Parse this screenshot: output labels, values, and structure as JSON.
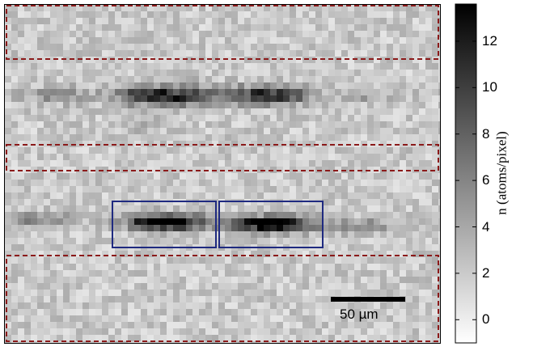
{
  "image": {
    "description_labels": {
      "scale_bar": "50 µm",
      "colorbar_label": "n  (atoms/pixel)"
    },
    "colorbar": {
      "ticks": [
        "0",
        "2",
        "4",
        "6",
        "8",
        "10",
        "12"
      ],
      "min": -1.0,
      "max": 13.6
    },
    "colors": {
      "dashed_box": "#8b1a1a",
      "solid_box": "#1f2a80",
      "scale_bar": "#000000"
    },
    "dashed_region_count": 3,
    "solid_region_count": 2
  }
}
